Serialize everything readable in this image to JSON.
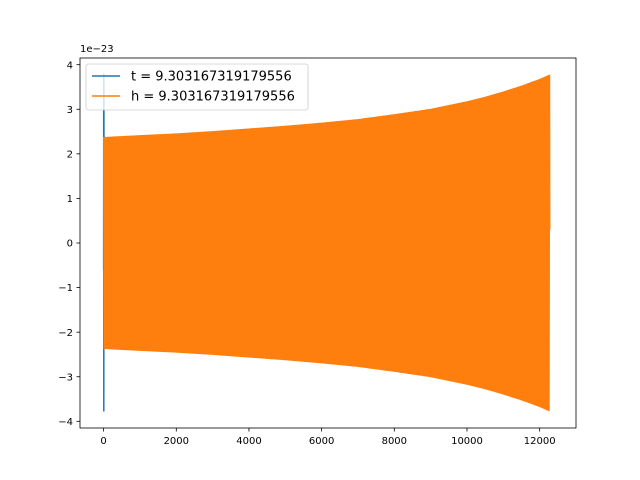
{
  "chart_data": {
    "type": "line",
    "title": "",
    "xlabel": "",
    "ylabel": "",
    "offset_text": "1e−23",
    "xlim": [
      -650,
      13000
    ],
    "ylim": [
      -4.15,
      4.15
    ],
    "xticks": [
      0,
      2000,
      4000,
      6000,
      8000,
      10000,
      12000
    ],
    "xtick_labels": [
      "0",
      "2000",
      "4000",
      "6000",
      "8000",
      "10000",
      "12000"
    ],
    "yticks": [
      -4,
      -3,
      -2,
      -1,
      0,
      1,
      2,
      3,
      4
    ],
    "ytick_labels": [
      "−4",
      "−3",
      "−2",
      "−1",
      "0",
      "1",
      "2",
      "3",
      "4"
    ],
    "grid": false,
    "legend": "top-left",
    "series": [
      {
        "name": "t = 9.303167319179556",
        "color": "#1f77b4",
        "x": [
          0,
          3,
          5,
          8,
          10,
          13,
          15,
          18,
          20
        ],
        "y": [
          -0.6,
          3.8,
          -3.78,
          3.7,
          -1.7,
          2.4,
          -2.3,
          1.0,
          0.0
        ]
      },
      {
        "name": "h = 9.303167319179556",
        "color": "#ff7f0e",
        "envelope_x": [
          0,
          50,
          1000,
          2000,
          3000,
          4000,
          5000,
          6000,
          7000,
          8000,
          9000,
          10000,
          10500,
          11000,
          11500,
          12000,
          12280
        ],
        "envelope_y": [
          2.38,
          2.38,
          2.42,
          2.46,
          2.51,
          2.57,
          2.63,
          2.7,
          2.78,
          2.89,
          3.01,
          3.18,
          3.28,
          3.4,
          3.53,
          3.68,
          3.78
        ],
        "x_end": 12280
      }
    ]
  }
}
